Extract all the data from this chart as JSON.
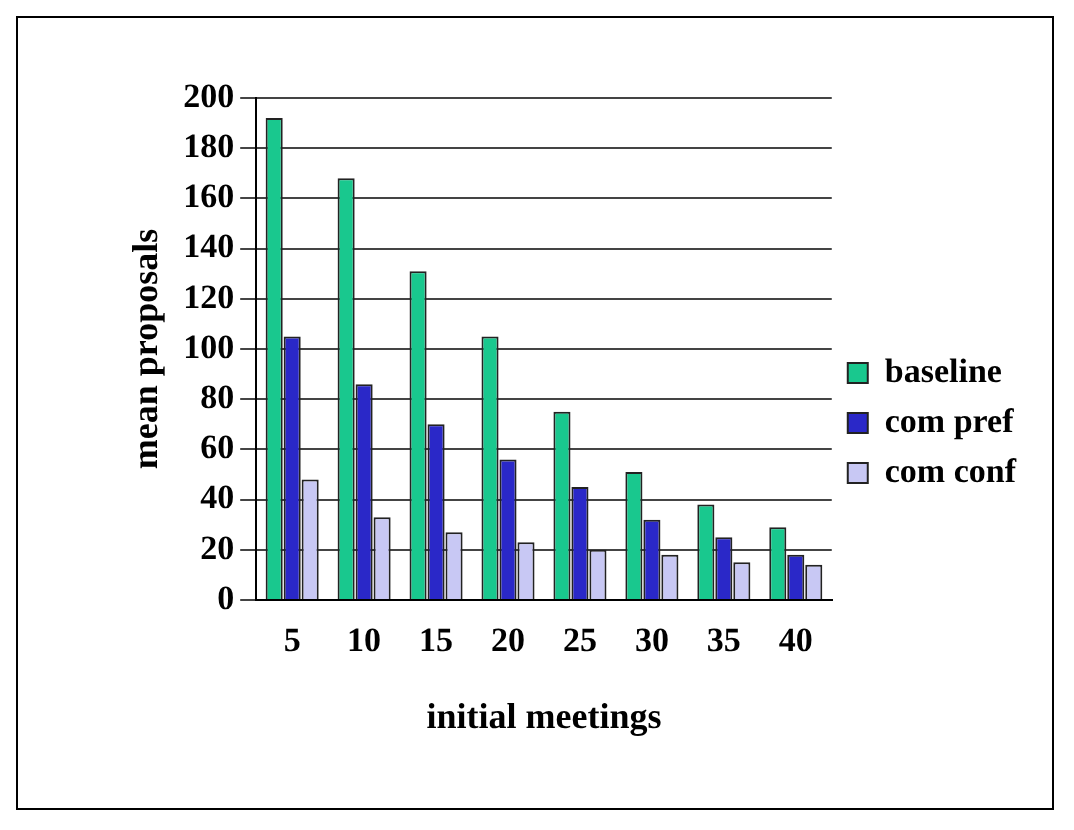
{
  "chart_data": {
    "type": "bar",
    "xlabel": "initial meetings",
    "ylabel": "mean proposals",
    "categories": [
      "5",
      "10",
      "15",
      "20",
      "25",
      "30",
      "35",
      "40"
    ],
    "series": [
      {
        "name": "baseline",
        "color": "#19c88e",
        "values": [
          192,
          168,
          131,
          105,
          75,
          51,
          38,
          29
        ]
      },
      {
        "name": "com pref",
        "color": "#2a28c8",
        "values": [
          105,
          86,
          70,
          56,
          45,
          32,
          25,
          18
        ]
      },
      {
        "name": "com conf",
        "color": "#c8c8f4",
        "values": [
          48,
          33,
          27,
          23,
          20,
          18,
          15,
          14
        ]
      }
    ],
    "ylim": [
      0,
      200
    ],
    "yticks": [
      0,
      20,
      40,
      60,
      80,
      100,
      120,
      140,
      160,
      180,
      200
    ],
    "grid": "y",
    "legend": "right"
  }
}
